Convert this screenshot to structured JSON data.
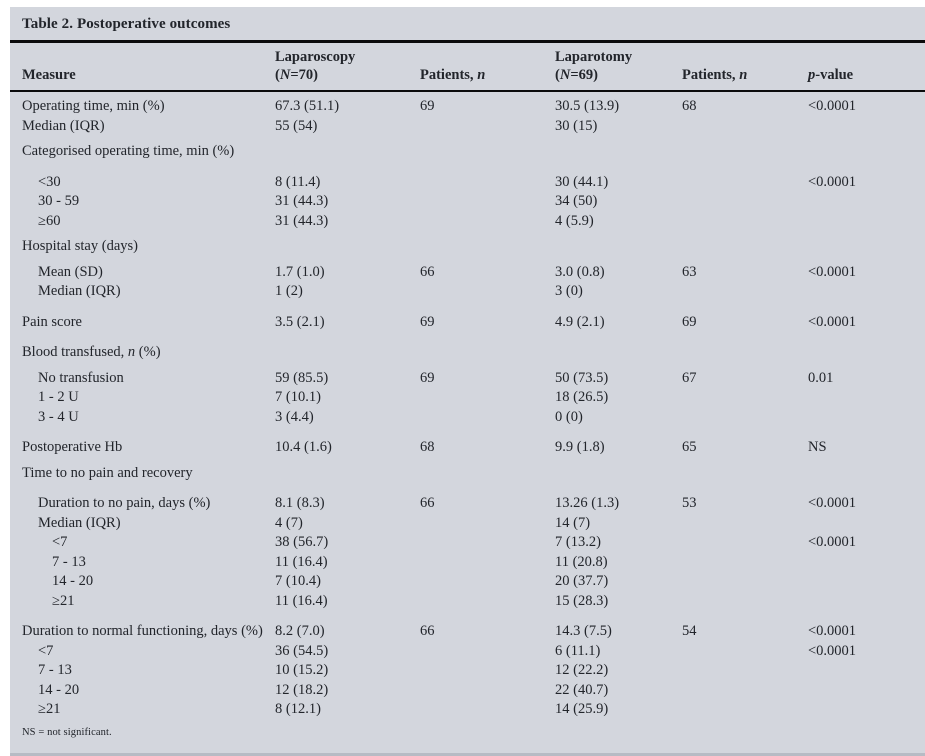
{
  "title": "Table 2. Postoperative outcomes",
  "footnote": "NS = not significant.",
  "colors": {
    "panel_bg": "#d3d6dd",
    "text": "#22252b",
    "rule": "#0b0b0c"
  },
  "table": {
    "columns": {
      "measure": "Measure",
      "laparoscopy_line1": "Laparoscopy",
      "laparoscopy_n_pre": "(",
      "laparoscopy_n_it": "N",
      "laparoscopy_n_post": "=70)",
      "patients_a_pre": "Patients, ",
      "patients_a_it": "n",
      "laparotomy_line1": "Laparotomy",
      "laparotomy_n_pre": "(",
      "laparotomy_n_it": "N",
      "laparotomy_n_post": "=69)",
      "patients_b_pre": "Patients, ",
      "patients_b_it": "n",
      "p_it": "p",
      "p_post": "-value"
    },
    "rows": [
      {
        "indent": 0,
        "g": 1,
        "measure": "Operating time, min (%)",
        "laparoscopy": "67.3 (51.1)",
        "patients_a": "69",
        "laparotomy": "30.5 (13.9)",
        "patients_b": "68",
        "p": "<0.0001"
      },
      {
        "indent": 0,
        "g": 0,
        "measure": "Median (IQR)",
        "laparoscopy": "55 (54)",
        "patients_a": "",
        "laparotomy": "30 (15)",
        "patients_b": "",
        "p": ""
      },
      {
        "indent": 0,
        "g": 1,
        "measure": "Categorised operating time, min (%)",
        "laparoscopy": "",
        "patients_a": "",
        "laparotomy": "",
        "patients_b": "",
        "p": ""
      },
      {
        "indent": 1,
        "g": 2,
        "measure": "<30",
        "laparoscopy": "8 (11.4)",
        "patients_a": "",
        "laparotomy": "30 (44.1)",
        "patients_b": "",
        "p": "<0.0001"
      },
      {
        "indent": 1,
        "g": 0,
        "measure": "30 - 59",
        "laparoscopy": "31 (44.3)",
        "patients_a": "",
        "laparotomy": "34 (50)",
        "patients_b": "",
        "p": ""
      },
      {
        "indent": 1,
        "g": 0,
        "measure": "≥60",
        "laparoscopy": "31 (44.3)",
        "patients_a": "",
        "laparotomy": "4 (5.9)",
        "patients_b": "",
        "p": ""
      },
      {
        "indent": 0,
        "g": 1,
        "measure": "Hospital stay (days)",
        "laparoscopy": "",
        "patients_a": "",
        "laparotomy": "",
        "patients_b": "",
        "p": ""
      },
      {
        "indent": 1,
        "g": 1,
        "measure": "Mean (SD)",
        "laparoscopy": "1.7 (1.0)",
        "patients_a": "66",
        "laparotomy": "3.0 (0.8)",
        "patients_b": "63",
        "p": "<0.0001"
      },
      {
        "indent": 1,
        "g": 0,
        "measure": "Median (IQR)",
        "laparoscopy": "1 (2)",
        "patients_a": "",
        "laparotomy": "3 (0)",
        "patients_b": "",
        "p": ""
      },
      {
        "indent": 0,
        "g": 2,
        "measure": "Pain score",
        "laparoscopy": "3.5 (2.1)",
        "patients_a": "69",
        "laparotomy": "4.9 (2.1)",
        "patients_b": "69",
        "p": "<0.0001"
      },
      {
        "indent": 0,
        "g": 2,
        "measure_parts": [
          {
            "t": "Blood transfused, "
          },
          {
            "t": "n",
            "i": true
          },
          {
            "t": " (%)"
          }
        ],
        "laparoscopy": "",
        "patients_a": "",
        "laparotomy": "",
        "patients_b": "",
        "p": ""
      },
      {
        "indent": 1,
        "g": 1,
        "measure": "No transfusion",
        "laparoscopy": "59 (85.5)",
        "patients_a": "69",
        "laparotomy": "50 (73.5)",
        "patients_b": "67",
        "p": "0.01"
      },
      {
        "indent": 1,
        "g": 0,
        "measure": "1 - 2 U",
        "laparoscopy": "7 (10.1)",
        "patients_a": "",
        "laparotomy": "18 (26.5)",
        "patients_b": "",
        "p": ""
      },
      {
        "indent": 1,
        "g": 0,
        "measure": "3 - 4 U",
        "laparoscopy": "3 (4.4)",
        "patients_a": "",
        "laparotomy": "0 (0)",
        "patients_b": "",
        "p": ""
      },
      {
        "indent": 0,
        "g": 2,
        "measure": "Postoperative Hb",
        "laparoscopy": "10.4 (1.6)",
        "patients_a": "68",
        "laparotomy": "9.9 (1.8)",
        "patients_b": "65",
        "p": "NS"
      },
      {
        "indent": 0,
        "g": 1,
        "measure": "Time to no pain and recovery",
        "laparoscopy": "",
        "patients_a": "",
        "laparotomy": "",
        "patients_b": "",
        "p": ""
      },
      {
        "indent": 1,
        "g": 2,
        "measure": "Duration to no pain, days (%)",
        "laparoscopy": "8.1 (8.3)",
        "patients_a": "66",
        "laparotomy": "13.26 (1.3)",
        "patients_b": "53",
        "p": "<0.0001"
      },
      {
        "indent": 1,
        "g": 0,
        "measure": "Median (IQR)",
        "laparoscopy": "4 (7)",
        "patients_a": "",
        "laparotomy": "14 (7)",
        "patients_b": "",
        "p": ""
      },
      {
        "indent": 2,
        "g": 0,
        "measure": "<7",
        "laparoscopy": "38 (56.7)",
        "patients_a": "",
        "laparotomy": "7 (13.2)",
        "patients_b": "",
        "p": "<0.0001"
      },
      {
        "indent": 2,
        "g": 0,
        "measure": "7 - 13",
        "laparoscopy": "11 (16.4)",
        "patients_a": "",
        "laparotomy": "11 (20.8)",
        "patients_b": "",
        "p": ""
      },
      {
        "indent": 2,
        "g": 0,
        "measure": "14 - 20",
        "laparoscopy": "7 (10.4)",
        "patients_a": "",
        "laparotomy": "20 (37.7)",
        "patients_b": "",
        "p": ""
      },
      {
        "indent": 2,
        "g": 0,
        "measure": "≥21",
        "laparoscopy": "11 (16.4)",
        "patients_a": "",
        "laparotomy": "15 (28.3)",
        "patients_b": "",
        "p": ""
      },
      {
        "indent": 0,
        "g": 2,
        "measure": "Duration to normal functioning, days (%)",
        "laparoscopy": "8.2 (7.0)",
        "patients_a": "66",
        "laparotomy": "14.3 (7.5)",
        "patients_b": "54",
        "p": "<0.0001"
      },
      {
        "indent": 1,
        "g": 0,
        "measure": "<7",
        "laparoscopy": "36 (54.5)",
        "patients_a": "",
        "laparotomy": "6 (11.1)",
        "patients_b": "",
        "p": "<0.0001"
      },
      {
        "indent": 1,
        "g": 0,
        "measure": "7 - 13",
        "laparoscopy": "10 (15.2)",
        "patients_a": "",
        "laparotomy": "12 (22.2)",
        "patients_b": "",
        "p": ""
      },
      {
        "indent": 1,
        "g": 0,
        "measure": "14 - 20",
        "laparoscopy": "12 (18.2)",
        "patients_a": "",
        "laparotomy": "22 (40.7)",
        "patients_b": "",
        "p": ""
      },
      {
        "indent": 1,
        "g": 0,
        "measure": "≥21",
        "laparoscopy": "8 (12.1)",
        "patients_a": "",
        "laparotomy": "14 (25.9)",
        "patients_b": "",
        "p": ""
      }
    ]
  }
}
